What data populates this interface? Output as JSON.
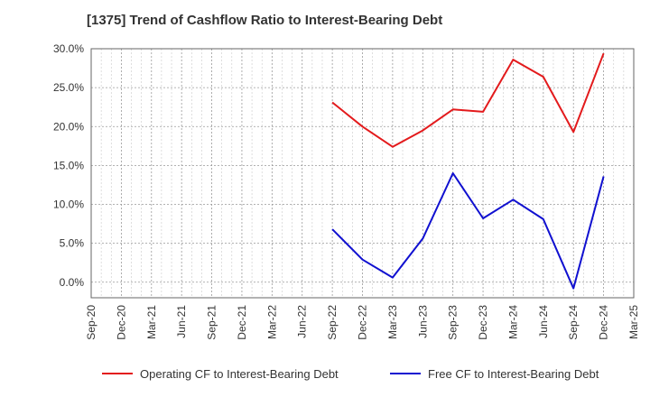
{
  "chart_data": {
    "type": "line",
    "title": "[1375]  Trend of Cashflow Ratio to Interest-Bearing Debt",
    "xlabel": "",
    "ylabel": "",
    "categories": [
      "Sep-20",
      "Dec-20",
      "Mar-21",
      "Jun-21",
      "Sep-21",
      "Dec-21",
      "Mar-22",
      "Jun-22",
      "Sep-22",
      "Dec-22",
      "Mar-23",
      "Jun-23",
      "Sep-23",
      "Dec-23",
      "Mar-24",
      "Jun-24",
      "Sep-24",
      "Dec-24",
      "Mar-25"
    ],
    "ylim": [
      -2,
      30
    ],
    "yticks": [
      0,
      5,
      10,
      15,
      20,
      25,
      30
    ],
    "ytick_labels": [
      "0.0%",
      "5.0%",
      "10.0%",
      "15.0%",
      "20.0%",
      "25.0%",
      "30.0%"
    ],
    "grid": true,
    "legend_position": "bottom",
    "series": [
      {
        "name": "Operating CF to Interest-Bearing Debt",
        "color": "#e31a1c",
        "values": [
          null,
          null,
          null,
          null,
          null,
          null,
          null,
          null,
          23.1,
          20.0,
          17.4,
          19.5,
          22.2,
          21.9,
          28.6,
          26.4,
          19.3,
          29.4,
          null
        ]
      },
      {
        "name": "Free CF to Interest-Bearing Debt",
        "color": "#1010d0",
        "values": [
          null,
          null,
          null,
          null,
          null,
          null,
          null,
          null,
          6.8,
          2.9,
          0.6,
          5.6,
          14.0,
          8.2,
          10.6,
          8.1,
          -0.8,
          13.6,
          null
        ]
      }
    ]
  }
}
